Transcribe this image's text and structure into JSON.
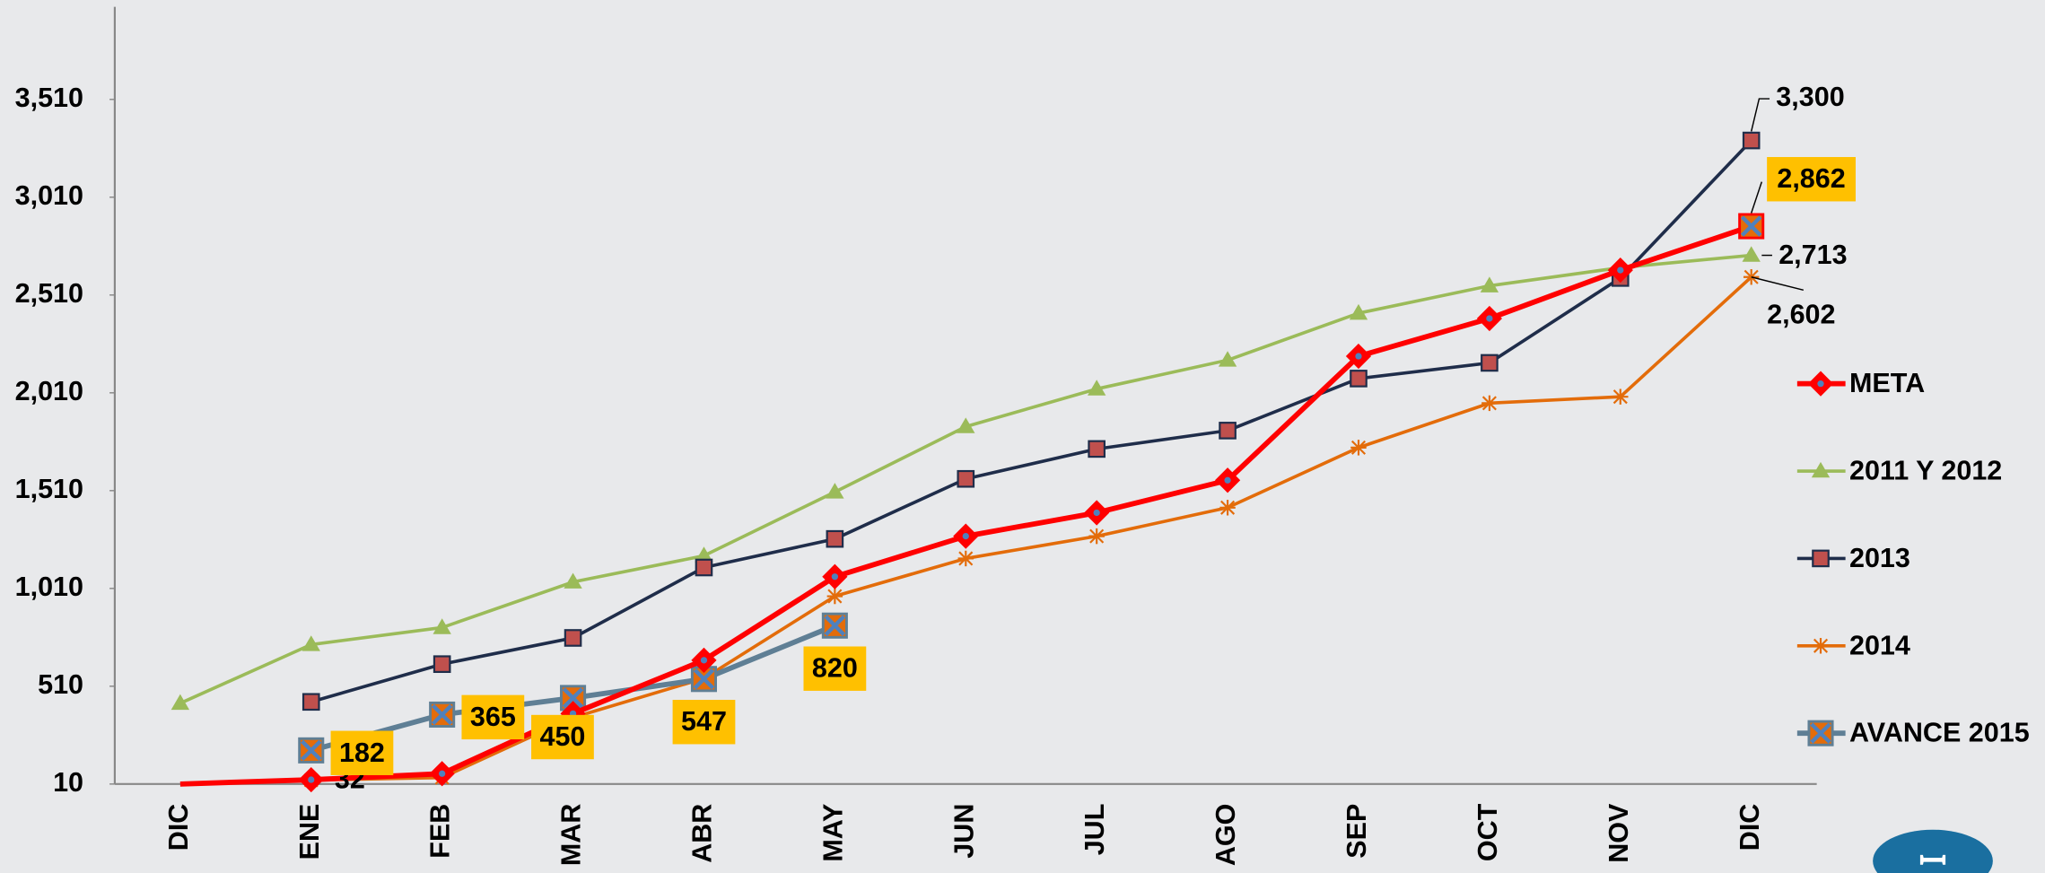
{
  "chart_data": {
    "type": "line",
    "categories": [
      "DIC",
      "ENE",
      "FEB",
      "MAR",
      "ABR",
      "MAY",
      "JUN",
      "JUL",
      "AGO",
      "SEP",
      "OCT",
      "NOV",
      "DIC"
    ],
    "ylim": [
      10,
      4010
    ],
    "yticks": [
      10,
      510,
      {
        "value": 1010,
        "label": "1,010"
      },
      {
        "value": 1510,
        "label": "1,510"
      },
      {
        "value": 2010,
        "label": "2,010"
      },
      {
        "value": 2510,
        "label": "2,510"
      },
      {
        "value": 3010,
        "label": "3,010"
      },
      {
        "value": 3510,
        "label": "3,510"
      }
    ],
    "grid": false,
    "legend": "right",
    "series": [
      {
        "name": "META",
        "color": "#ff0000",
        "marker": "diamond",
        "values": [
          10,
          32,
          63,
          370,
          643,
          1070,
          1277,
          1397,
          1563,
          2197,
          2390,
          2637,
          2862
        ],
        "value_labels": [
          null,
          "32",
          null,
          null,
          null,
          null,
          null,
          null,
          null,
          null,
          null,
          null,
          "2,862"
        ]
      },
      {
        "name": "2011 Y  2012",
        "color": "#9bbb59",
        "marker": "triangle",
        "values": [
          423,
          723,
          810,
          1043,
          1177,
          1503,
          1837,
          2030,
          2177,
          2417,
          2557,
          2650,
          2713
        ],
        "value_labels": [
          null,
          null,
          null,
          null,
          null,
          null,
          null,
          null,
          null,
          null,
          null,
          null,
          "2,713"
        ]
      },
      {
        "name": "2013",
        "color": "#1f2d4a",
        "marker": "square",
        "values": [
          null,
          430,
          623,
          757,
          1117,
          1263,
          1570,
          1723,
          1817,
          2083,
          2163,
          2597,
          3300
        ],
        "value_labels": [
          null,
          null,
          null,
          null,
          null,
          null,
          null,
          null,
          null,
          null,
          null,
          null,
          "3,300"
        ]
      },
      {
        "name": "2014",
        "color": "#e36c0a",
        "marker": "star",
        "values": [
          null,
          30,
          43,
          350,
          550,
          970,
          1163,
          1277,
          1423,
          1730,
          1957,
          1990,
          2602
        ],
        "value_labels": [
          null,
          null,
          null,
          null,
          null,
          null,
          null,
          null,
          null,
          null,
          null,
          null,
          "2,602"
        ]
      },
      {
        "name": "AVANCE 2015",
        "color": "#5f7f95",
        "marker": "xbox",
        "values": [
          null,
          182,
          365,
          450,
          547,
          820,
          null,
          null,
          null,
          null,
          null,
          null,
          null
        ]
      }
    ]
  }
}
